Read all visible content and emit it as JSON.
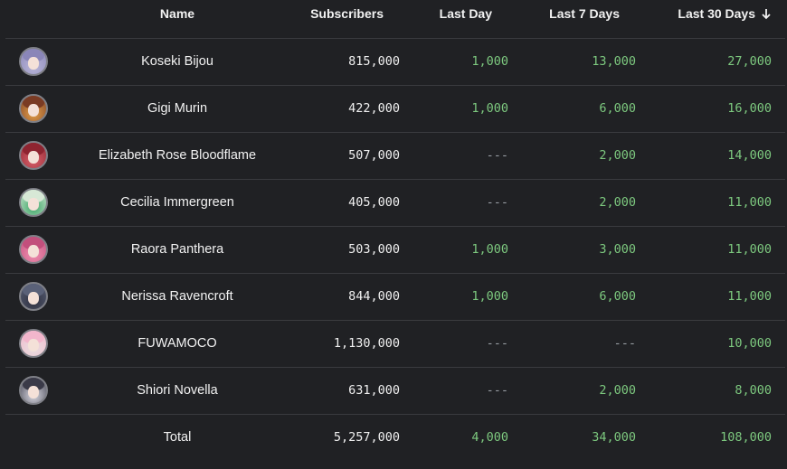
{
  "columns": {
    "name": "Name",
    "subscribers": "Subscribers",
    "last_day": "Last Day",
    "last_7_days": "Last 7 Days",
    "last_30_days": "Last 30 Days",
    "sort_icon": "arrow-down-icon"
  },
  "rows": [
    {
      "name": "Koseki Bijou",
      "subscribers": "815,000",
      "last_day": "1,000",
      "last_7_days": "13,000",
      "last_30_days": "27,000",
      "avatar_colors": [
        "#b9b6d8",
        "#8a86b8"
      ]
    },
    {
      "name": "Gigi Murin",
      "subscribers": "422,000",
      "last_day": "1,000",
      "last_7_days": "6,000",
      "last_30_days": "16,000",
      "avatar_colors": [
        "#e3a04a",
        "#7a3b24"
      ]
    },
    {
      "name": "Elizabeth Rose Bloodflame",
      "subscribers": "507,000",
      "last_day": "---",
      "last_7_days": "2,000",
      "last_30_days": "14,000",
      "avatar_colors": [
        "#d8606a",
        "#8e2430"
      ]
    },
    {
      "name": "Cecilia Immergreen",
      "subscribers": "405,000",
      "last_day": "---",
      "last_7_days": "2,000",
      "last_30_days": "11,000",
      "avatar_colors": [
        "#3fa86a",
        "#d7e8d6"
      ]
    },
    {
      "name": "Raora Panthera",
      "subscribers": "503,000",
      "last_day": "1,000",
      "last_7_days": "3,000",
      "last_30_days": "11,000",
      "avatar_colors": [
        "#ef8fb0",
        "#c24f7c"
      ]
    },
    {
      "name": "Nerissa Ravencroft",
      "subscribers": "844,000",
      "last_day": "1,000",
      "last_7_days": "6,000",
      "last_30_days": "11,000",
      "avatar_colors": [
        "#2f3140",
        "#5a6178"
      ]
    },
    {
      "name": "FUWAMOCO",
      "subscribers": "1,130,000",
      "last_day": "---",
      "last_7_days": "---",
      "last_30_days": "10,000",
      "avatar_colors": [
        "#e8e0e0",
        "#f2b6cc"
      ]
    },
    {
      "name": "Shiori Novella",
      "subscribers": "631,000",
      "last_day": "---",
      "last_7_days": "2,000",
      "last_30_days": "8,000",
      "avatar_colors": [
        "#d9d9e2",
        "#3a3a48"
      ]
    }
  ],
  "total": {
    "name": "Total",
    "subscribers": "5,257,000",
    "last_day": "4,000",
    "last_7_days": "34,000",
    "last_30_days": "108,000"
  },
  "colors": {
    "background": "#202124",
    "positive": "#7dc97f",
    "neutral": "#9aa0a6",
    "divider": "#3a3b3f"
  }
}
